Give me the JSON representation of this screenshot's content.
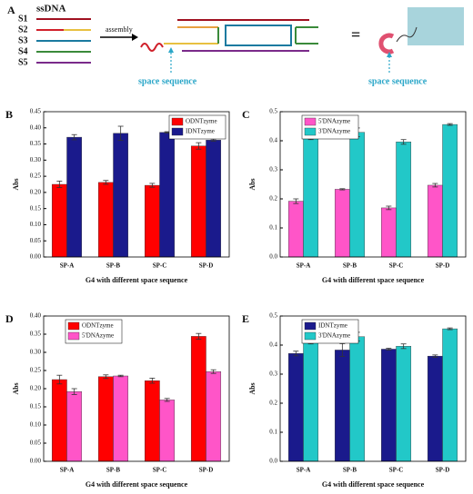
{
  "panel_a": {
    "label": "A",
    "heading": "ssDNA",
    "strands": [
      "S1",
      "S2",
      "S3",
      "S4",
      "S5"
    ],
    "step": "assembly",
    "equals": "=",
    "left_note": "space sequence",
    "right_note": "space sequence"
  },
  "chart_data": [
    {
      "type": "bar",
      "panel": "B",
      "xlabel": "G4 with different space sequence",
      "ylabel": "Abs",
      "categories": [
        "SP-A",
        "SP-B",
        "SP-C",
        "SP-D"
      ],
      "series": [
        {
          "name": "ODNTzyme",
          "color": "#ff0000",
          "values": [
            0.225,
            0.231,
            0.222,
            0.344
          ],
          "errors": [
            0.01,
            0.006,
            0.006,
            0.01
          ]
        },
        {
          "name": "IDNTzyme",
          "color": "#1a1a8c",
          "values": [
            0.371,
            0.383,
            0.386,
            0.362
          ],
          "errors": [
            0.008,
            0.022,
            0.002,
            0.003
          ]
        }
      ],
      "ylim": [
        0,
        0.45
      ],
      "yticks": [
        {
          "value": 0,
          "label": "0.00"
        },
        {
          "value": 0.05,
          "label": "0.05"
        },
        {
          "value": 0.1,
          "label": "0.10"
        },
        {
          "value": 0.15,
          "label": "0.15"
        },
        {
          "value": 0.2,
          "label": "0.20"
        },
        {
          "value": 0.25,
          "label": "0.25"
        },
        {
          "value": 0.3,
          "label": "0.30"
        },
        {
          "value": 0.35,
          "label": "0.35"
        },
        {
          "value": 0.4,
          "label": "0.40"
        },
        {
          "value": 0.45,
          "label": "0.45"
        }
      ],
      "legend": "upper right"
    },
    {
      "type": "bar",
      "panel": "C",
      "xlabel": "G4 with different space sequence",
      "ylabel": "Abs",
      "categories": [
        "SP-A",
        "SP-B",
        "SP-C",
        "SP-D"
      ],
      "series": [
        {
          "name": "5'DNAzyme",
          "color": "#ff55c8",
          "values": [
            0.192,
            0.233,
            0.169,
            0.247
          ],
          "errors": [
            0.008,
            0.002,
            0.006,
            0.006
          ]
        },
        {
          "name": "3'DNAzyme",
          "color": "#22c8c8",
          "values": [
            0.409,
            0.429,
            0.396,
            0.456
          ],
          "errors": [
            0.005,
            0.015,
            0.008,
            0.003
          ]
        }
      ],
      "ylim": [
        0,
        0.5
      ],
      "yticks": [
        {
          "value": 0,
          "label": "0.0"
        },
        0.1,
        0.2,
        0.3,
        0.4,
        0.5
      ],
      "legend": "upper left"
    },
    {
      "type": "bar",
      "panel": "D",
      "xlabel": "G4 with different space sequence",
      "ylabel": "Abs",
      "categories": [
        "SP-A",
        "SP-B",
        "SP-C",
        "SP-D"
      ],
      "series": [
        {
          "name": "ODNTzyme",
          "color": "#ff0000",
          "values": [
            0.225,
            0.233,
            0.222,
            0.344
          ],
          "errors": [
            0.012,
            0.005,
            0.007,
            0.008
          ]
        },
        {
          "name": "5'DNAzyme",
          "color": "#ff55c8",
          "values": [
            0.192,
            0.235,
            0.169,
            0.247
          ],
          "errors": [
            0.008,
            0.002,
            0.004,
            0.005
          ]
        }
      ],
      "ylim": [
        0,
        0.4
      ],
      "yticks": [
        {
          "value": 0,
          "label": "0.00"
        },
        {
          "value": 0.05,
          "label": "0.05"
        },
        {
          "value": 0.1,
          "label": "0.10"
        },
        {
          "value": 0.15,
          "label": "0.15"
        },
        {
          "value": 0.2,
          "label": "0.20"
        },
        {
          "value": 0.25,
          "label": "0.25"
        },
        {
          "value": 0.3,
          "label": "0.30"
        },
        {
          "value": 0.35,
          "label": "0.35"
        },
        {
          "value": 0.4,
          "label": "0.40"
        }
      ],
      "legend": "upper left"
    },
    {
      "type": "bar",
      "panel": "E",
      "xlabel": "G4 with different space sequence",
      "ylabel": "Abs",
      "categories": [
        "SP-A",
        "SP-B",
        "SP-C",
        "SP-D"
      ],
      "series": [
        {
          "name": "IDNTzyme",
          "color": "#1a1a8c",
          "values": [
            0.371,
            0.383,
            0.386,
            0.362
          ],
          "errors": [
            0.008,
            0.022,
            0.003,
            0.004
          ]
        },
        {
          "name": "3'DNAzyme",
          "color": "#22c8c8",
          "values": [
            0.409,
            0.429,
            0.396,
            0.456
          ],
          "errors": [
            0.005,
            0.015,
            0.008,
            0.003
          ]
        }
      ],
      "ylim": [
        0,
        0.5
      ],
      "yticks": [
        {
          "value": 0,
          "label": "0.0"
        },
        0.1,
        0.2,
        0.3,
        0.4,
        0.5
      ],
      "legend": "upper left"
    }
  ]
}
